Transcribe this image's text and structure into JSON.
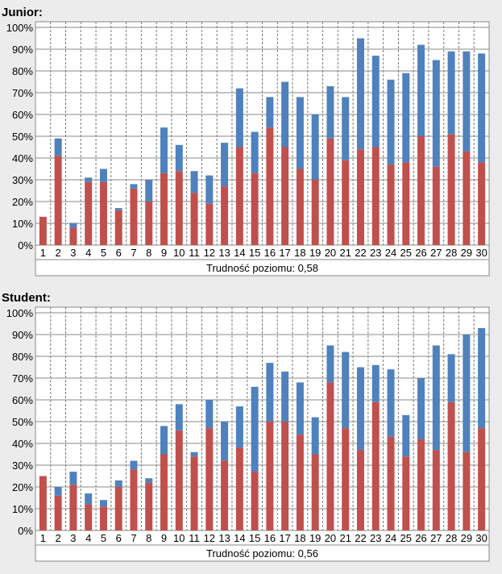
{
  "colors": {
    "red": "#c0504d",
    "blue": "#4f81bd",
    "background": "#ececec",
    "plot_bg": "#ffffff"
  },
  "chart_data": [
    {
      "type": "bar",
      "stacked": true,
      "title": "Junior:",
      "footer": "Trudność poziomu: 0,58",
      "categories": [
        "1",
        "2",
        "3",
        "4",
        "5",
        "6",
        "7",
        "8",
        "9",
        "10",
        "11",
        "12",
        "13",
        "14",
        "15",
        "16",
        "17",
        "18",
        "19",
        "20",
        "21",
        "22",
        "23",
        "24",
        "25",
        "26",
        "27",
        "28",
        "29",
        "30"
      ],
      "y_ticks": [
        "0%",
        "10%",
        "20%",
        "30%",
        "40%",
        "50%",
        "60%",
        "70%",
        "80%",
        "90%",
        "100%"
      ],
      "ylim": [
        0,
        100
      ],
      "grid": true,
      "series": [
        {
          "color": "#c0504d",
          "values": [
            13,
            41,
            8,
            29,
            29,
            16,
            26,
            20,
            33,
            34,
            24,
            19,
            27,
            45,
            33,
            54,
            45,
            35,
            30,
            49,
            39,
            44,
            45,
            37,
            38,
            50,
            36,
            51,
            43,
            38
          ]
        },
        {
          "color": "#4f81bd",
          "values": [
            0,
            8,
            2,
            2,
            6,
            1,
            2,
            10,
            21,
            12,
            10,
            13,
            20,
            27,
            19,
            14,
            30,
            33,
            30,
            24,
            29,
            51,
            42,
            39,
            41,
            42,
            49,
            38,
            46,
            50
          ]
        }
      ]
    },
    {
      "type": "bar",
      "stacked": true,
      "title": "Student:",
      "footer": "Trudność poziomu: 0,56",
      "categories": [
        "1",
        "2",
        "3",
        "4",
        "5",
        "6",
        "7",
        "8",
        "9",
        "10",
        "11",
        "12",
        "13",
        "14",
        "15",
        "16",
        "17",
        "18",
        "19",
        "20",
        "21",
        "22",
        "23",
        "24",
        "25",
        "26",
        "27",
        "28",
        "29",
        "30"
      ],
      "y_ticks": [
        "0%",
        "10%",
        "20%",
        "30%",
        "40%",
        "50%",
        "60%",
        "70%",
        "80%",
        "90%",
        "100%"
      ],
      "ylim": [
        0,
        100
      ],
      "grid": true,
      "series": [
        {
          "color": "#c0504d",
          "values": [
            25,
            16,
            21,
            12,
            11,
            20,
            28,
            22,
            35,
            46,
            34,
            47,
            32,
            38,
            27,
            50,
            50,
            44,
            35,
            68,
            47,
            37,
            59,
            43,
            34,
            42,
            37,
            59,
            36,
            47
          ]
        },
        {
          "color": "#4f81bd",
          "values": [
            0,
            4,
            6,
            5,
            3,
            3,
            4,
            2,
            13,
            12,
            2,
            13,
            18,
            19,
            39,
            27,
            23,
            24,
            17,
            17,
            35,
            38,
            17,
            31,
            19,
            28,
            48,
            22,
            54,
            46
          ]
        }
      ]
    }
  ]
}
